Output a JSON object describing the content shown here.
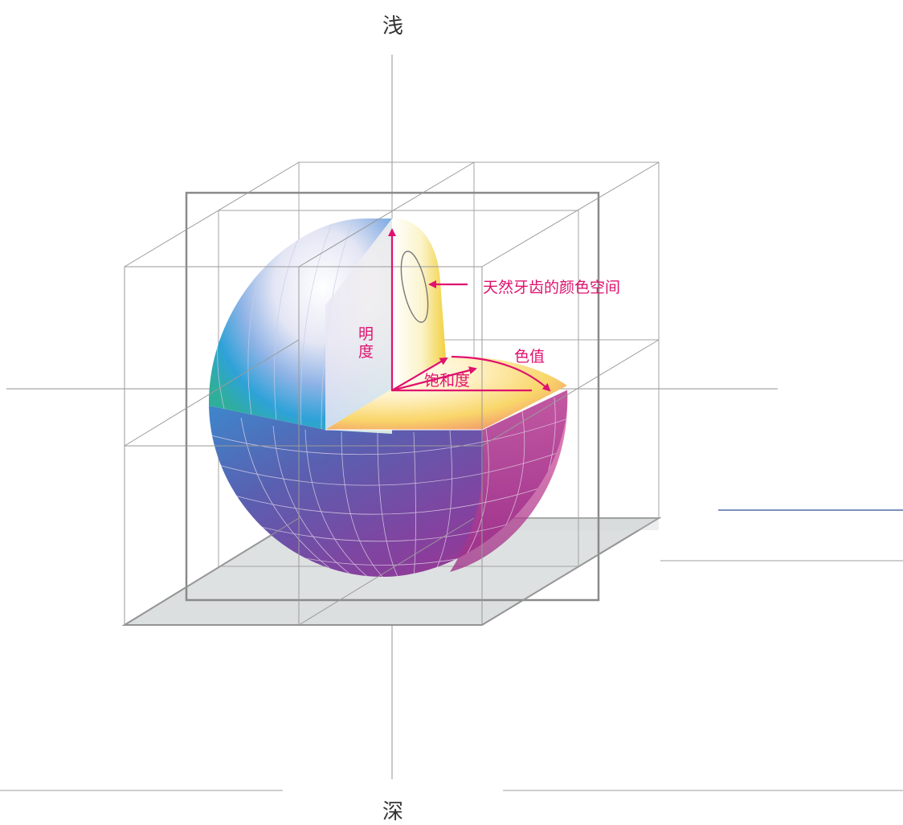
{
  "labels": {
    "top": "浅",
    "bottom": "深",
    "brightness": "明度",
    "saturation": "饱和度",
    "hue": "色值",
    "tooth_space": "天然牙齿的颜色空间"
  },
  "colors": {
    "accent": "#e0116e",
    "axis_text": "#333333",
    "grid_line": "#9a9a9a",
    "frame_line": "#8c8c8c",
    "floor": "#dcdfe0",
    "decor_line_blue": "#2f4f8f"
  }
}
